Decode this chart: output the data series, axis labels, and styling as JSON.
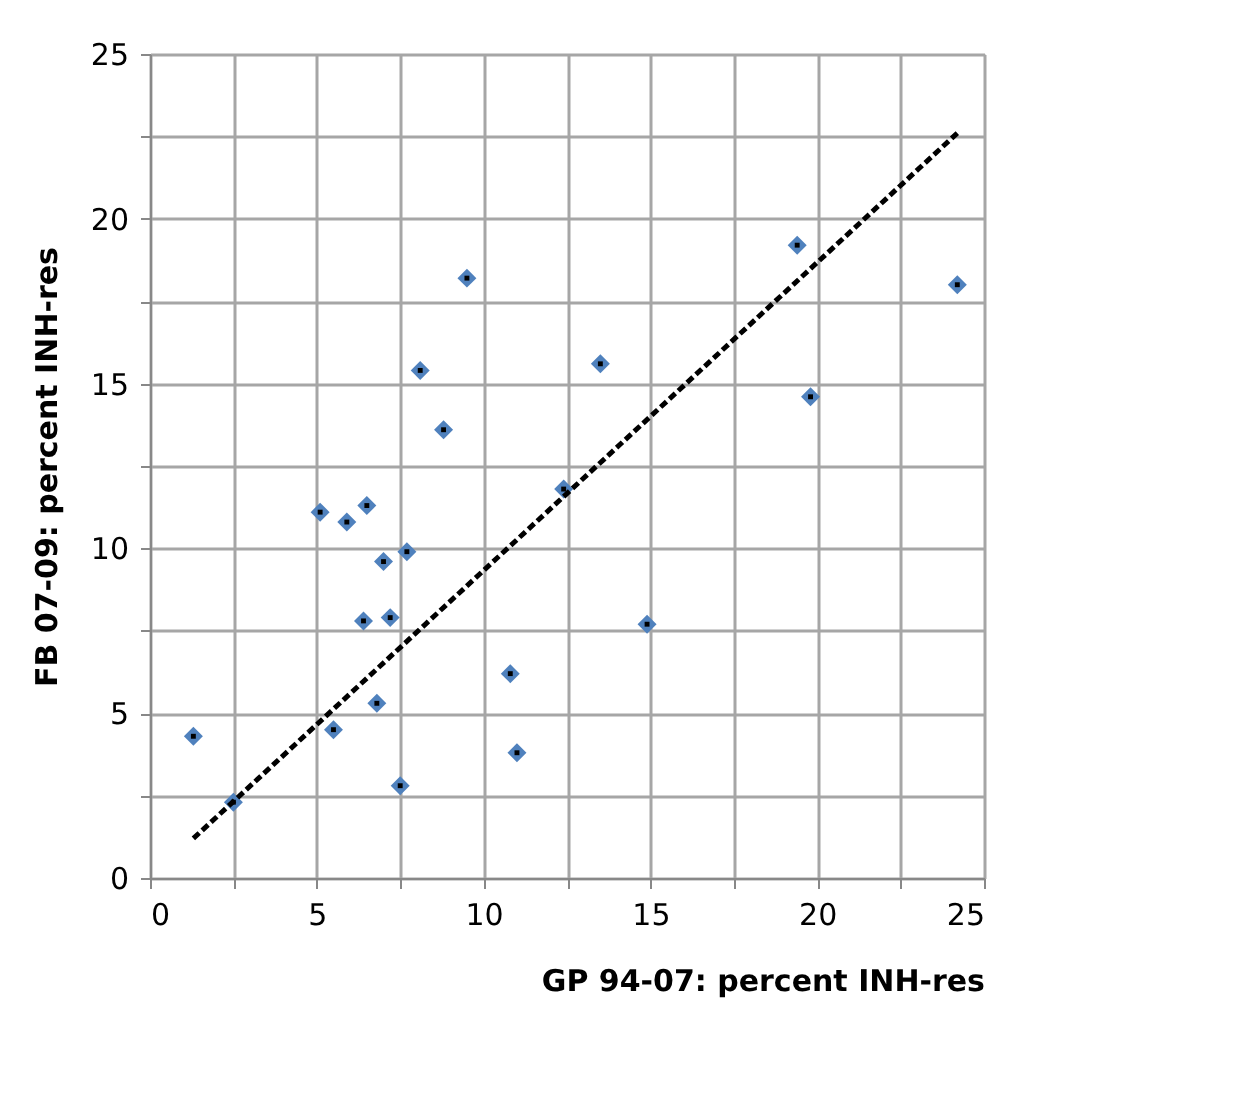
{
  "chart_data": {
    "type": "scatter",
    "xlabel": "GP 94-07: percent INH-res",
    "ylabel": "FB 07-09: percent INH-res",
    "xlim": [
      0,
      25
    ],
    "ylim": [
      0,
      25
    ],
    "xticks": [
      0,
      {
        "value": 2.5,
        "label": null
      },
      5,
      {
        "value": 7.5,
        "label": null
      },
      10,
      {
        "value": 12.5,
        "label": null
      },
      15,
      {
        "value": 17.5,
        "label": null
      },
      20,
      {
        "value": 22.5,
        "label": null
      },
      25
    ],
    "yticks": [
      0,
      {
        "value": 2.5,
        "label": null
      },
      5,
      {
        "value": 7.5,
        "label": null
      },
      10,
      {
        "value": 12.5,
        "label": null
      },
      15,
      {
        "value": 17.5,
        "label": null
      },
      20,
      {
        "value": 22.5,
        "label": null
      },
      25
    ],
    "grid": true,
    "marker": "diamond",
    "series": [
      {
        "color": "#4f81bd",
        "x": [
          1.3,
          2.5,
          5.1,
          5.5,
          5.9,
          6.4,
          6.5,
          6.8,
          7.0,
          7.2,
          7.5,
          7.7,
          8.1,
          8.8,
          9.5,
          10.8,
          11.0,
          12.4,
          13.5,
          14.9,
          19.4,
          19.8,
          24.2
        ],
        "values": [
          4.3,
          2.3,
          11.1,
          4.5,
          10.8,
          7.8,
          11.3,
          5.3,
          9.6,
          7.9,
          2.8,
          9.9,
          15.4,
          13.6,
          18.2,
          6.2,
          3.8,
          11.8,
          15.6,
          7.7,
          19.2,
          14.6,
          18.0
        ]
      },
      {
        "type": "line",
        "color": "#000000",
        "line_style": "dashed",
        "marker": "none",
        "x": [
          1.3,
          24.2
        ],
        "values": [
          1.2,
          22.6
        ]
      }
    ]
  }
}
